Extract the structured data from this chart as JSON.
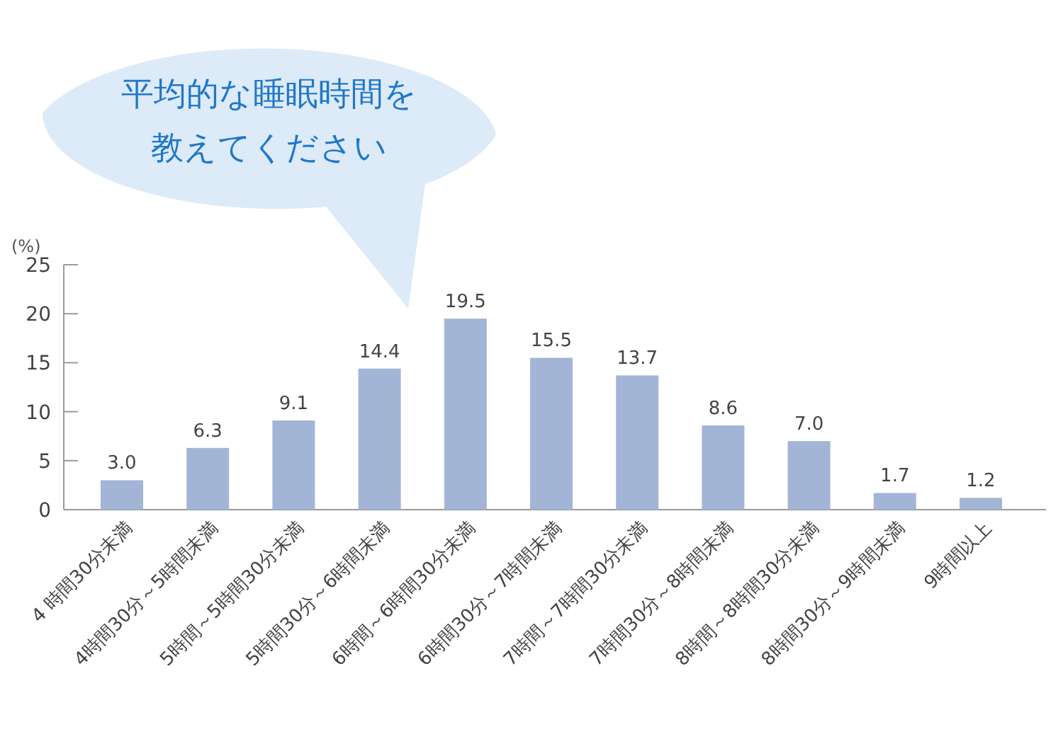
{
  "chart_data": {
    "type": "bar",
    "title": "平均的な睡眠時間を教えてください",
    "ylabel": "(%)",
    "categories": [
      "4 時間30分未満",
      "4時間30分～5時間未満",
      "5時間～5時間30分未満",
      "5時間30分～6時間未満",
      "6時間～6時間30分未満",
      "6時間30分～7時間未満",
      "7時間～7時間30分未満",
      "7時間30分～8時間未満",
      "8時間～8時間30分未満",
      "8時間30分～9時間未満",
      "9時間以上"
    ],
    "values": [
      3.0,
      6.3,
      9.1,
      14.4,
      19.5,
      15.5,
      13.7,
      8.6,
      7.0,
      1.7,
      1.2
    ],
    "value_labels": [
      "3.0",
      "6.3",
      "9.1",
      "14.4",
      "19.5",
      "15.5",
      "13.7",
      "8.6",
      "7.0",
      "1.7",
      "1.2"
    ],
    "color": "#a3b5d6",
    "ylim": [
      0,
      25
    ],
    "yticks": [
      0,
      5,
      10,
      15,
      20,
      25
    ],
    "grid": false
  }
}
